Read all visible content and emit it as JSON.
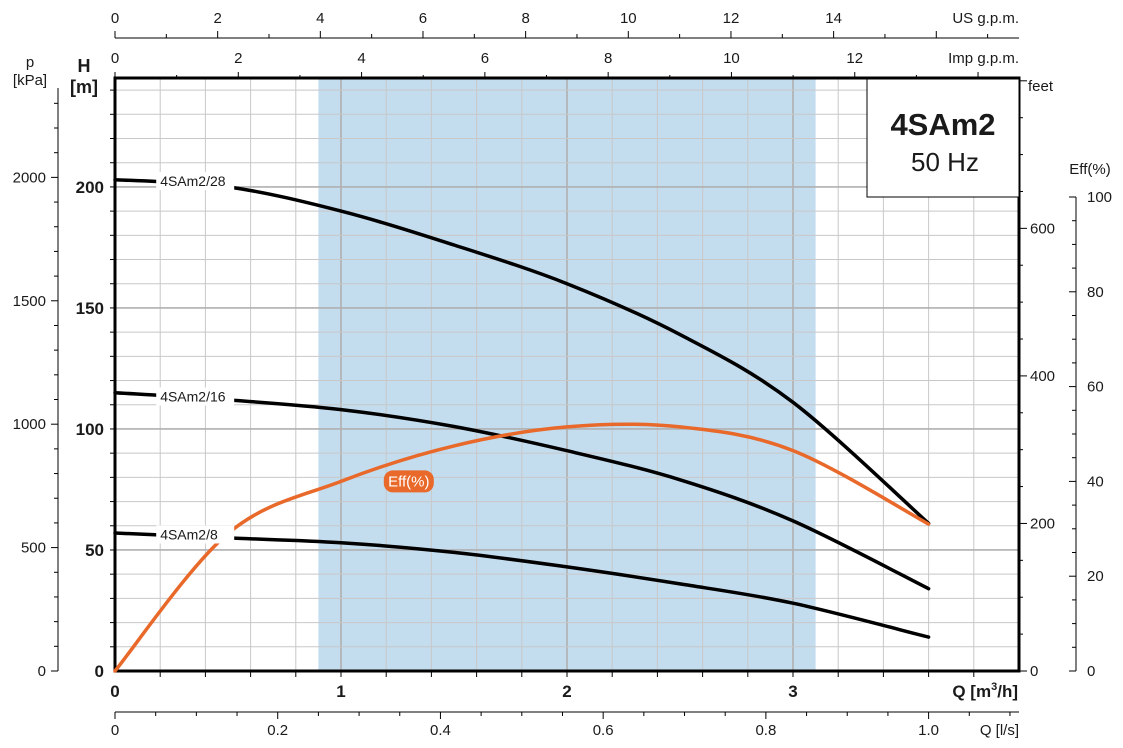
{
  "chart_data": {
    "type": "line",
    "title": "4SAm2",
    "subtitle": "50 Hz",
    "xlabel_primary": "Q [m³/h]",
    "x_unit_base": "Q [m",
    "x_unit_sup": "3",
    "x_unit_tail": "/h]",
    "xlim": [
      0,
      4
    ],
    "ylim": [
      0,
      245
    ],
    "grid": true,
    "best_efficiency_range": [
      0.9,
      3.1
    ],
    "highlight_color": "#c3dcee",
    "colors": {
      "head": "#000000",
      "efficiency": "#e8692a",
      "grid": "#c8c8c8"
    },
    "axes": {
      "x_m3h": {
        "ticks": [
          "0",
          "1",
          "2",
          "3"
        ],
        "values": [
          0,
          1,
          2,
          3
        ],
        "label_base": "Q [m",
        "label_sup": "3",
        "label_tail": "/h]"
      },
      "x_ls": {
        "label": "Q [l/s]",
        "ticks": [
          "0",
          "0.2",
          "0.4",
          "0.6",
          "0.8",
          "1.0"
        ],
        "values": [
          0,
          0.2,
          0.4,
          0.6,
          0.8,
          1.0
        ]
      },
      "x_usgpm": {
        "label": "US g.p.m.",
        "ticks": [
          "0",
          "2",
          "4",
          "6",
          "8",
          "10",
          "12",
          "14"
        ],
        "values": [
          0,
          2,
          4,
          6,
          8,
          10,
          12,
          14
        ]
      },
      "x_impgpm": {
        "label": "Imp g.p.m.",
        "ticks": [
          "0",
          "2",
          "4",
          "6",
          "8",
          "10",
          "12"
        ],
        "values": [
          0,
          2,
          4,
          6,
          8,
          10,
          12
        ]
      },
      "y_head": {
        "label_line1": "H",
        "label_line2": "[m]",
        "ticks": [
          "0",
          "50",
          "100",
          "150",
          "200"
        ],
        "values": [
          0,
          50,
          100,
          150,
          200
        ]
      },
      "y_pressure": {
        "label_line1": "p",
        "label_line2": "[kPa]",
        "ticks": [
          "0",
          "500",
          "1000",
          "1500",
          "2000"
        ],
        "values": [
          0,
          500,
          1000,
          1500,
          2000
        ]
      },
      "y_feet": {
        "label": "feet",
        "ticks": [
          "0",
          "200",
          "400",
          "600"
        ],
        "values": [
          0,
          200,
          400,
          600
        ]
      },
      "y_eff": {
        "label": "Eff(%)",
        "ticks": [
          "0",
          "20",
          "40",
          "60",
          "80",
          "100"
        ],
        "values": [
          0,
          20,
          40,
          60,
          80,
          100
        ]
      }
    },
    "series": [
      {
        "name": "4SAm2/28",
        "kind": "head",
        "x": [
          0,
          0.5,
          1,
          1.5,
          2,
          2.5,
          3,
          3.6
        ],
        "y": [
          203,
          200,
          190,
          176,
          160,
          139,
          111,
          61
        ],
        "label_x": 0.2,
        "label_y": 202
      },
      {
        "name": "4SAm2/16",
        "kind": "head",
        "x": [
          0,
          0.5,
          1,
          1.5,
          2,
          2.5,
          3,
          3.6
        ],
        "y": [
          115,
          112,
          108,
          101,
          91,
          79,
          62,
          34
        ],
        "label_x": 0.2,
        "label_y": 113
      },
      {
        "name": "4SAm2/8",
        "kind": "head",
        "x": [
          0,
          0.5,
          1,
          1.5,
          2,
          2.5,
          3,
          3.6
        ],
        "y": [
          57,
          55,
          53,
          49,
          43,
          36,
          28,
          14
        ],
        "label_x": 0.2,
        "label_y": 56
      },
      {
        "name": "Eff(%)",
        "kind": "efficiency",
        "x": [
          0,
          0.5,
          1,
          1.5,
          2,
          2.5,
          3,
          3.6
        ],
        "y": [
          0,
          29,
          40,
          47.5,
          51.5,
          51.5,
          46.5,
          31
        ],
        "label_x": 1.3,
        "label_y": 40
      }
    ]
  }
}
